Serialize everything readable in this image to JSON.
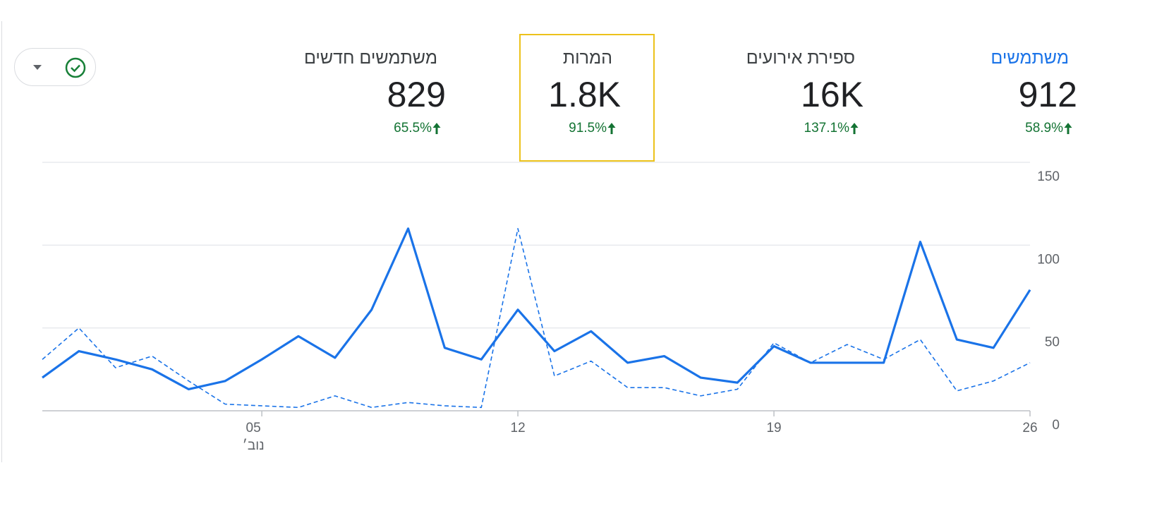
{
  "metrics": [
    {
      "title": "משתמשים",
      "value": "912",
      "change": "58.9%",
      "active": true,
      "selected": false
    },
    {
      "title": "ספירת אירועים",
      "value": "16K",
      "change": "137.1%",
      "active": false,
      "selected": false
    },
    {
      "title": "המרות",
      "value": "1.8K",
      "change": "91.5%",
      "active": false,
      "selected": true
    },
    {
      "title": "משתמשים חדשים",
      "value": "829",
      "change": "65.5%",
      "active": false,
      "selected": false
    }
  ],
  "chart_data": {
    "type": "line",
    "categories": [
      null,
      null,
      null,
      null,
      null,
      null,
      "05",
      null,
      null,
      null,
      null,
      null,
      null,
      "12",
      null,
      null,
      null,
      null,
      null,
      null,
      "19",
      null,
      null,
      null,
      null,
      null,
      null,
      "26"
    ],
    "month_label": "נוב׳",
    "series": [
      {
        "color": "#1a73e8",
        "style": "solid",
        "values": [
          20,
          36,
          31,
          25,
          13,
          18,
          31,
          45,
          32,
          61,
          110,
          38,
          31,
          61,
          36,
          48,
          29,
          33,
          20,
          17,
          39,
          29,
          29,
          29,
          102,
          43,
          38,
          73
        ]
      },
      {
        "color": "#1a73e8",
        "style": "dashed",
        "values": [
          31,
          50,
          26,
          33,
          18,
          4,
          3,
          2,
          9,
          2,
          5,
          3,
          2,
          110,
          21,
          30,
          14,
          14,
          9,
          13,
          41,
          29,
          40,
          31,
          43,
          12,
          18,
          29
        ]
      }
    ],
    "ylim": [
      0,
      150
    ],
    "yticks": [
      0,
      50,
      100,
      150
    ],
    "grid": true
  }
}
